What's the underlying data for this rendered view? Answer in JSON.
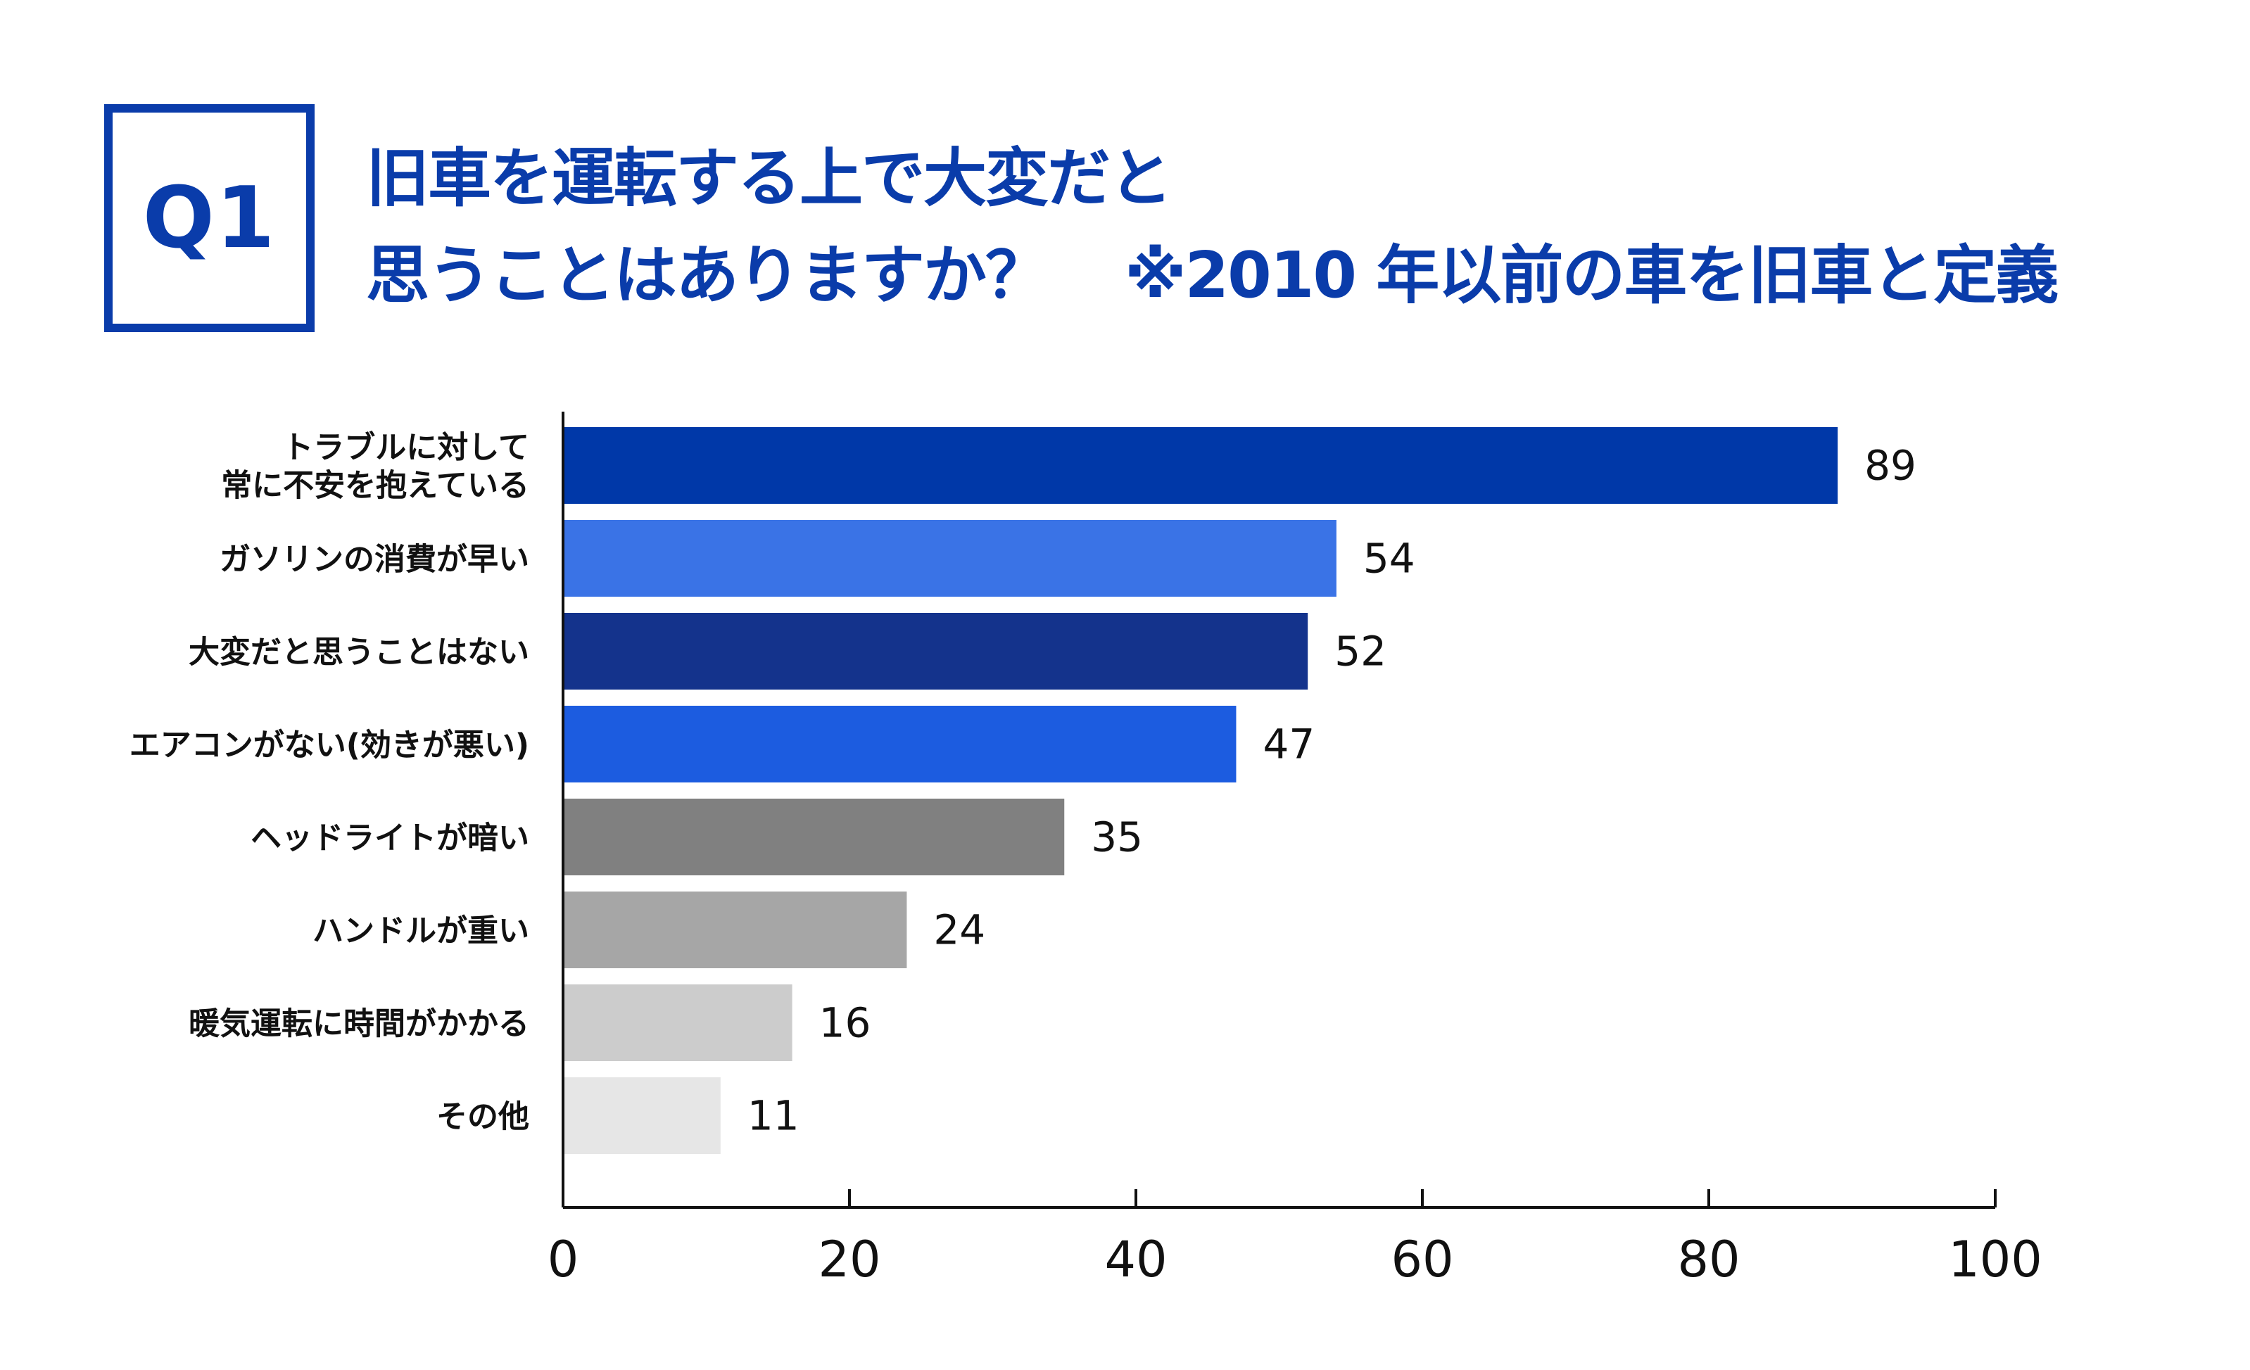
{
  "header": {
    "badge": "Q1",
    "title_line1": "旧車を運転する上で大変だと",
    "title_line2": "思うことはありますか？",
    "note": "※2010 年以前の車を旧車と定義"
  },
  "chart_data": {
    "type": "bar",
    "orientation": "horizontal",
    "categories": [
      [
        "トラブルに対して",
        "常に不安を抱えている"
      ],
      [
        "ガソリンの消費が早い"
      ],
      [
        "大変だと思うことはない"
      ],
      [
        "エアコンがない(効きが悪い)"
      ],
      [
        "ヘッドライトが暗い"
      ],
      [
        "ハンドルが重い"
      ],
      [
        "暖気運転に時間がかかる"
      ],
      [
        "その他"
      ]
    ],
    "values": [
      89,
      54,
      52,
      47,
      35,
      24,
      16,
      11
    ],
    "colors": [
      "#0038a8",
      "#3a73e6",
      "#14338c",
      "#1c5ce0",
      "#808080",
      "#a6a6a6",
      "#cccccc",
      "#e6e6e6"
    ],
    "xlim": [
      0,
      100
    ],
    "xticks": [
      "0",
      "20",
      "40",
      "60",
      "80",
      "100"
    ],
    "grid": false,
    "data_labels": true
  }
}
